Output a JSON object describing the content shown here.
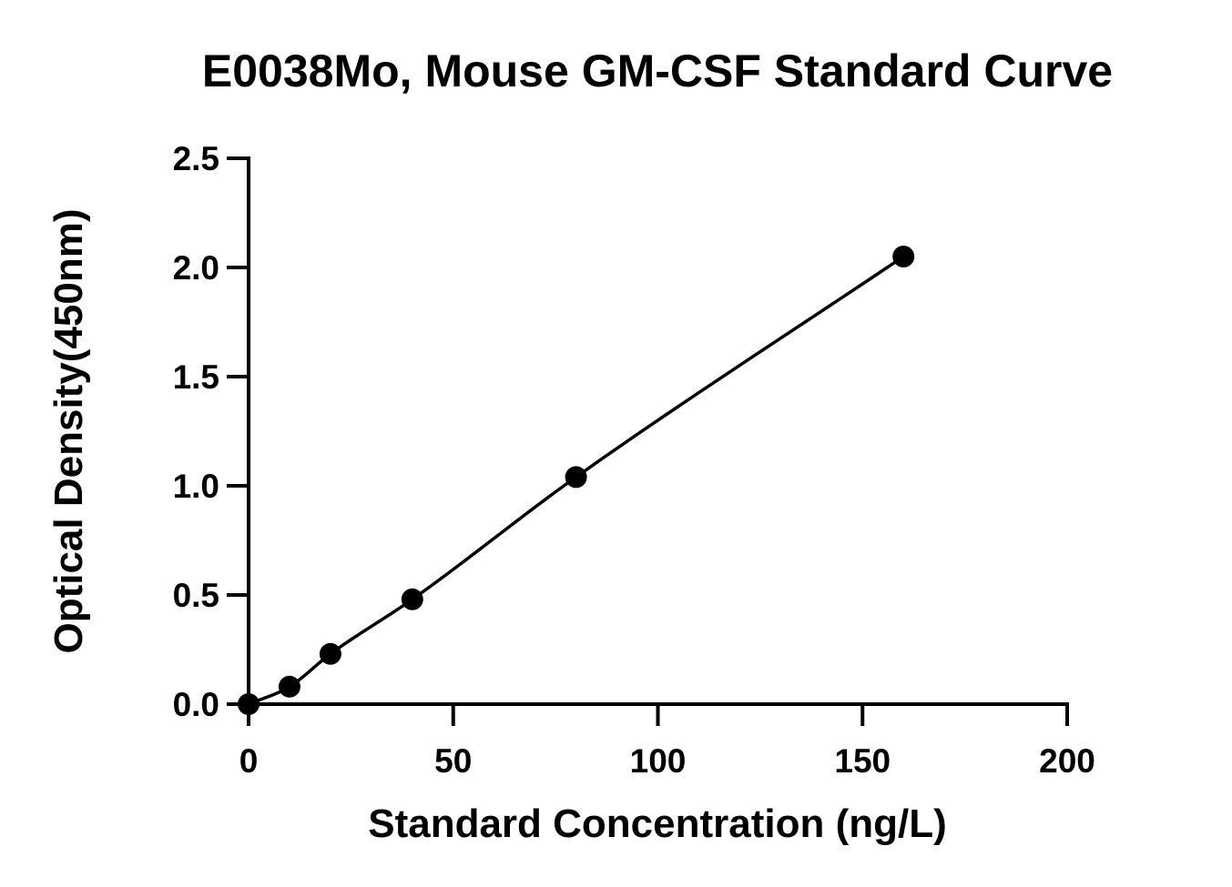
{
  "chart_data": {
    "type": "scatter",
    "title": "E0038Mo, Mouse GM-CSF Standard Curve",
    "xlabel": "Standard Concentration (ng/L)",
    "ylabel": "Optical Density(450nm)",
    "xlim": [
      0,
      200
    ],
    "ylim": [
      0,
      2.5
    ],
    "x_ticks": [
      "0",
      "50",
      "100",
      "150",
      "200"
    ],
    "y_ticks": [
      "0.0",
      "0.5",
      "1.0",
      "1.5",
      "2.0",
      "2.5"
    ],
    "grid": false,
    "legend": "none",
    "series": [
      {
        "x": [
          0,
          10,
          20,
          40,
          80,
          160
        ],
        "y": [
          0.0,
          0.08,
          0.23,
          0.48,
          1.04,
          2.05
        ],
        "marker": "circle",
        "fit_line": true
      }
    ],
    "colors": {
      "points": "#000000",
      "line": "#000000",
      "axes": "#000000"
    }
  }
}
